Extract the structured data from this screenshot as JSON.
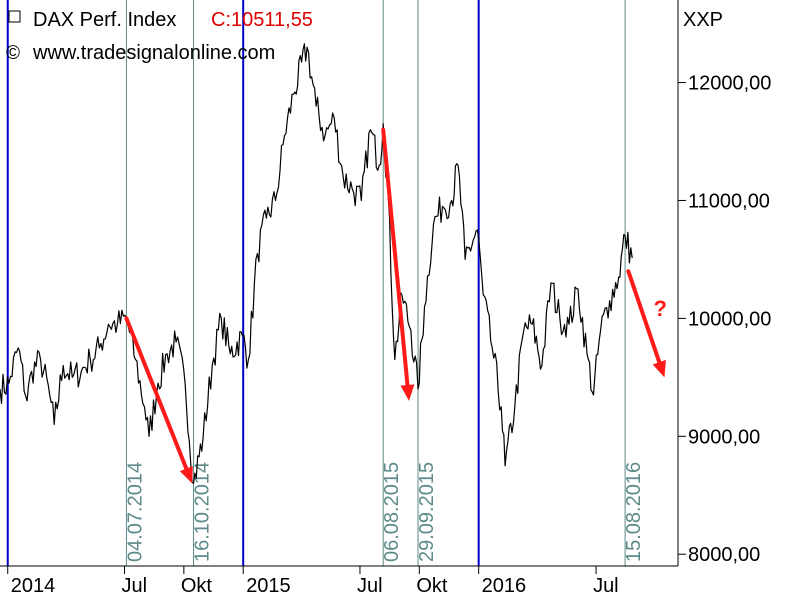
{
  "header": {
    "instrument": "DAX Perf. Index",
    "close_label": "C:10511,55",
    "source": "www.tradesignalonline.com",
    "copyright_symbol": "©",
    "checkbox_symbol": "□"
  },
  "chart_data": {
    "type": "line",
    "unit": "XXP",
    "ylim": [
      7900,
      12700
    ],
    "xlim": [
      "2013-12-20",
      "2016-11-05"
    ],
    "y_ticks": [
      {
        "value": 8000,
        "label": "8000,00"
      },
      {
        "value": 9000,
        "label": "9000,00"
      },
      {
        "value": 10000,
        "label": "10000,00"
      },
      {
        "value": 11000,
        "label": "11000,00"
      },
      {
        "value": 12000,
        "label": "12000,00"
      }
    ],
    "x_ticks": [
      {
        "date": "2014-01-01",
        "label": "2014",
        "kind": "year"
      },
      {
        "date": "2014-07-01",
        "label": "Jul",
        "kind": "month"
      },
      {
        "date": "2014-10-01",
        "label": "Okt",
        "kind": "month"
      },
      {
        "date": "2015-01-01",
        "label": "2015",
        "kind": "year"
      },
      {
        "date": "2015-07-01",
        "label": "Jul",
        "kind": "month"
      },
      {
        "date": "2015-10-01",
        "label": "Okt",
        "kind": "month"
      },
      {
        "date": "2016-01-01",
        "label": "2016",
        "kind": "year"
      },
      {
        "date": "2016-07-01",
        "label": "Jul",
        "kind": "month"
      }
    ],
    "year_lines": [
      "2014-01-01",
      "2015-01-01",
      "2016-01-01"
    ],
    "event_lines": [
      {
        "date": "2014-07-04",
        "label": "04.07.2014"
      },
      {
        "date": "2014-10-16",
        "label": "16.10.2014"
      },
      {
        "date": "2015-08-06",
        "label": "06.08.2015"
      },
      {
        "date": "2015-09-29",
        "label": "29.09.2015"
      },
      {
        "date": "2016-08-15",
        "label": "15.08.2016"
      }
    ],
    "series": [
      {
        "x": [
          "2013-12-20",
          "2014-01-03",
          "2014-01-17",
          "2014-01-31",
          "2014-02-07",
          "2014-02-21",
          "2014-03-07",
          "2014-03-14",
          "2014-03-28",
          "2014-04-11",
          "2014-04-25",
          "2014-05-09",
          "2014-05-23",
          "2014-06-06",
          "2014-06-20",
          "2014-07-04",
          "2014-07-18",
          "2014-08-01",
          "2014-08-08",
          "2014-08-22",
          "2014-09-05",
          "2014-09-19",
          "2014-10-03",
          "2014-10-16",
          "2014-10-31",
          "2014-11-14",
          "2014-11-28",
          "2014-12-12",
          "2014-12-31",
          "2015-01-09",
          "2015-01-23",
          "2015-02-06",
          "2015-02-20",
          "2015-03-06",
          "2015-03-20",
          "2015-04-10",
          "2015-04-24",
          "2015-05-08",
          "2015-05-22",
          "2015-06-05",
          "2015-06-19",
          "2015-07-03",
          "2015-07-17",
          "2015-07-31",
          "2015-08-06",
          "2015-08-14",
          "2015-08-24",
          "2015-09-04",
          "2015-09-18",
          "2015-09-29",
          "2015-10-09",
          "2015-10-23",
          "2015-11-06",
          "2015-11-20",
          "2015-11-30",
          "2015-12-11",
          "2015-12-30",
          "2016-01-08",
          "2016-01-22",
          "2016-02-05",
          "2016-02-11",
          "2016-02-26",
          "2016-03-11",
          "2016-03-24",
          "2016-04-08",
          "2016-04-22",
          "2016-05-06",
          "2016-05-20",
          "2016-06-03",
          "2016-06-17",
          "2016-06-27",
          "2016-07-08",
          "2016-07-22",
          "2016-08-05",
          "2016-08-15",
          "2016-08-26"
        ],
        "values": [
          9400,
          9450,
          9750,
          9300,
          9550,
          9650,
          9350,
          9100,
          9600,
          9500,
          9550,
          9650,
          9750,
          9950,
          9950,
          10000,
          9650,
          9250,
          9000,
          9450,
          9700,
          9800,
          9450,
          8600,
          9000,
          9600,
          10000,
          9700,
          9850,
          9650,
          10550,
          10850,
          11000,
          11550,
          11900,
          12300,
          11800,
          11550,
          11700,
          11200,
          11100,
          11000,
          11600,
          11300,
          11650,
          11000,
          9650,
          10200,
          9900,
          9400,
          10100,
          10800,
          10950,
          11000,
          11300,
          10500,
          10750,
          10200,
          9750,
          9250,
          8750,
          9250,
          9900,
          9950,
          9600,
          10300,
          10000,
          9950,
          10250,
          9700,
          9350,
          9900,
          10150,
          10350,
          10700,
          10511
        ]
      }
    ],
    "annotations": [
      {
        "type": "arrow",
        "from": [
          "2014-07-04",
          10000
        ],
        "to": [
          "2014-10-14",
          8600
        ]
      },
      {
        "type": "arrow",
        "from": [
          "2015-08-06",
          11600
        ],
        "to": [
          "2015-09-15",
          9300
        ]
      },
      {
        "type": "arrow",
        "from": [
          "2016-08-20",
          10400
        ],
        "to": [
          "2016-10-15",
          9500
        ]
      },
      {
        "type": "text",
        "text": "?",
        "at": [
          "2016-09-28",
          10020
        ]
      }
    ],
    "colors": {
      "price": "#000000",
      "year_line": "#0000cc",
      "event_line": "#5e8a8a",
      "event_text": "#5e8a8a",
      "arrow": "#ff1a1a",
      "close_text": "#e00000"
    }
  }
}
